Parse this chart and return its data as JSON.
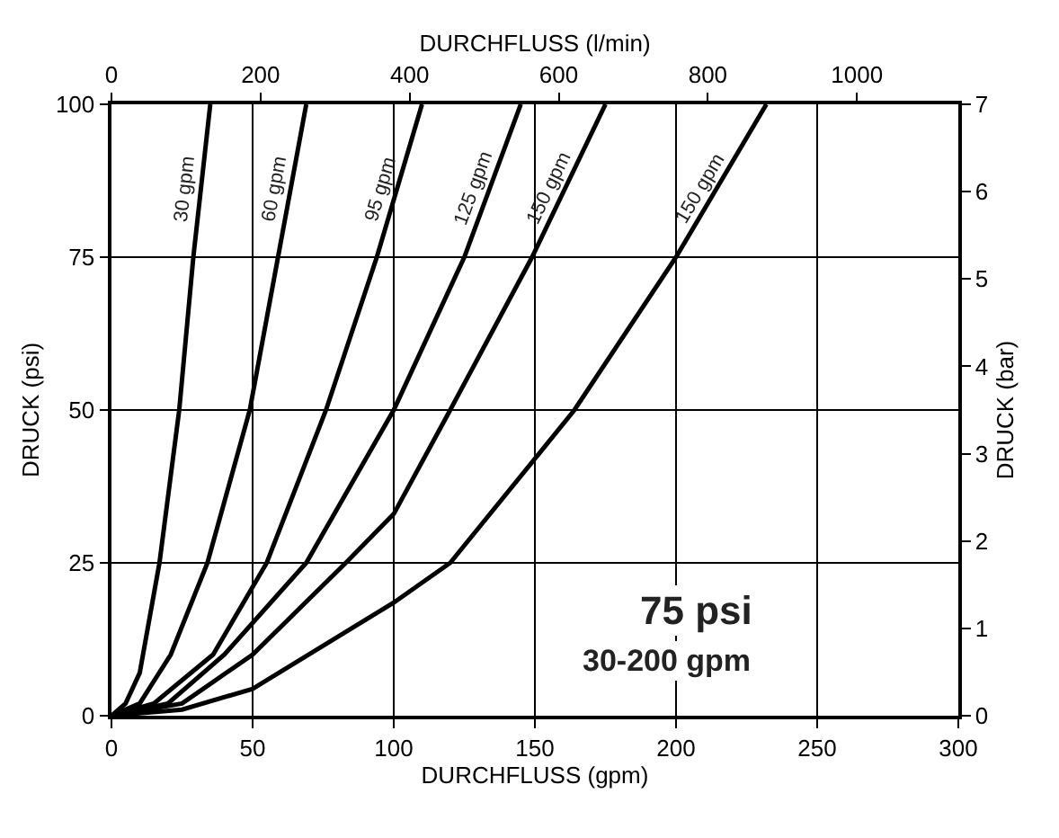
{
  "chart_data": {
    "type": "line",
    "xlabel": "DURCHFLUSS (gpm)",
    "ylabel": "DRUCK (psi)",
    "x2label": "DURCHFLUSS (l/min)",
    "y2label": "DRUCK (bar)",
    "xlim": [
      0,
      300
    ],
    "xticks": [
      0,
      50,
      100,
      150,
      200,
      250,
      300
    ],
    "ylim": [
      0,
      100
    ],
    "yticks": [
      0,
      25,
      50,
      75,
      100
    ],
    "x2lim": [
      0,
      1136
    ],
    "x2ticks": [
      0,
      200,
      400,
      600,
      800,
      1000
    ],
    "y2lim": [
      0,
      7
    ],
    "y2ticks": [
      0,
      1,
      2,
      3,
      4,
      5,
      6,
      7
    ],
    "grid": true,
    "marker": "none",
    "line_style": "solid",
    "series": [
      {
        "name": "30 gpm",
        "color": "#000000",
        "x": [
          0,
          5,
          10,
          17,
          24,
          29,
          35
        ],
        "values": [
          0,
          2,
          7,
          25,
          50,
          75,
          100
        ]
      },
      {
        "name": "60 gpm",
        "color": "#000000",
        "x": [
          0,
          10,
          21,
          34,
          49,
          59,
          69
        ],
        "values": [
          0,
          2,
          10,
          25,
          50,
          75,
          100
        ]
      },
      {
        "name": "95 gpm",
        "color": "#000000",
        "x": [
          0,
          15,
          36,
          55,
          76,
          94,
          110
        ],
        "values": [
          0,
          2,
          10,
          25,
          50,
          75,
          100
        ]
      },
      {
        "name": "125 gpm",
        "color": "#000000",
        "x": [
          0,
          20,
          40,
          69,
          100,
          125,
          145
        ],
        "values": [
          0,
          2,
          10,
          25,
          50,
          75,
          100
        ]
      },
      {
        "name": "150 gpm",
        "color": "#000000",
        "x": [
          0,
          25,
          50,
          83,
          100,
          120,
          149,
          175
        ],
        "values": [
          0,
          2,
          10,
          25,
          33,
          50,
          75,
          100
        ]
      },
      {
        "name": "150 gpm",
        "color": "#000000",
        "x": [
          0,
          25,
          50,
          100,
          120,
          151,
          164,
          200,
          232
        ],
        "values": [
          0,
          1,
          4.4,
          18.5,
          25,
          42.6,
          50,
          75,
          100
        ]
      }
    ],
    "annotations": [
      "75 psi",
      "30-200 gpm"
    ]
  }
}
